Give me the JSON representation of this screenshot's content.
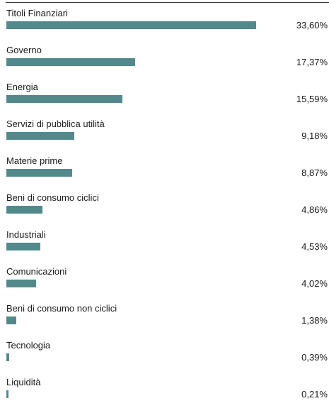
{
  "chart_data": {
    "type": "bar",
    "orientation": "horizontal",
    "bar_color": "#528a8c",
    "categories": [
      "Titoli Finanziari",
      "Governo",
      "Energia",
      "Servizi di pubblica utilità",
      "Materie prime",
      "Beni di consumo ciclici",
      "Industriali",
      "Comunicazioni",
      "Beni di consumo non ciclici",
      "Tecnologia",
      "Liquidità"
    ],
    "values": [
      33.6,
      17.37,
      15.59,
      9.18,
      8.87,
      4.86,
      4.53,
      4.02,
      1.38,
      0.39,
      0.21
    ],
    "value_labels": [
      "33,60%",
      "17,37%",
      "15,59%",
      "9,18%",
      "8,87%",
      "4,86%",
      "4,53%",
      "4,02%",
      "1,38%",
      "0,39%",
      "0,21%"
    ],
    "unit": "%",
    "grid": false,
    "legend": "none"
  }
}
